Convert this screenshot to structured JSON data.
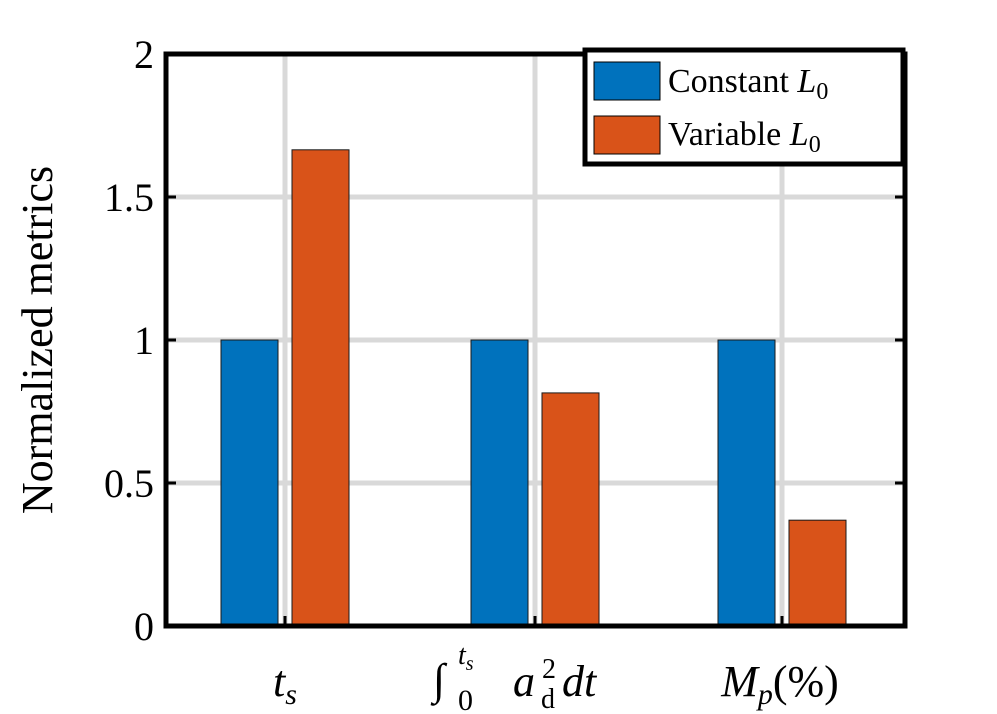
{
  "chart_data": {
    "type": "bar",
    "title": "",
    "xlabel": "",
    "ylabel": "Normalized metrics",
    "ylim": [
      0,
      2
    ],
    "yticks": [
      0,
      0.5,
      1,
      1.5,
      2
    ],
    "ytick_labels": [
      "0",
      "0.5",
      "1",
      "1.5",
      "2"
    ],
    "grid": true,
    "legend_position": "top-right",
    "categories": [
      "t_s",
      "∫_0^{t_s} a_d^2 dt",
      "M_p(%)"
    ],
    "category_display": {
      "ts": {
        "base": "t",
        "sub": "s"
      },
      "integral": {
        "sign": "∫",
        "lower": "0",
        "upper": "t",
        "upper_sub": "s",
        "a": "a",
        "a_sup": "2",
        "a_sub": "d",
        "dt": "dt"
      },
      "mp": {
        "base": "M",
        "sub": "p",
        "rest": "(%)"
      }
    },
    "series": [
      {
        "name": "Constant L0",
        "legend_text": "Constant ",
        "legend_symbol": "L",
        "legend_sub": "0",
        "color": "#0072BD",
        "values": [
          1.0,
          1.0,
          1.0
        ]
      },
      {
        "name": "Variable L0",
        "legend_text": "Variable ",
        "legend_symbol": "L",
        "legend_sub": "0",
        "color": "#D95319",
        "values": [
          1.665,
          0.815,
          0.37
        ]
      }
    ]
  }
}
